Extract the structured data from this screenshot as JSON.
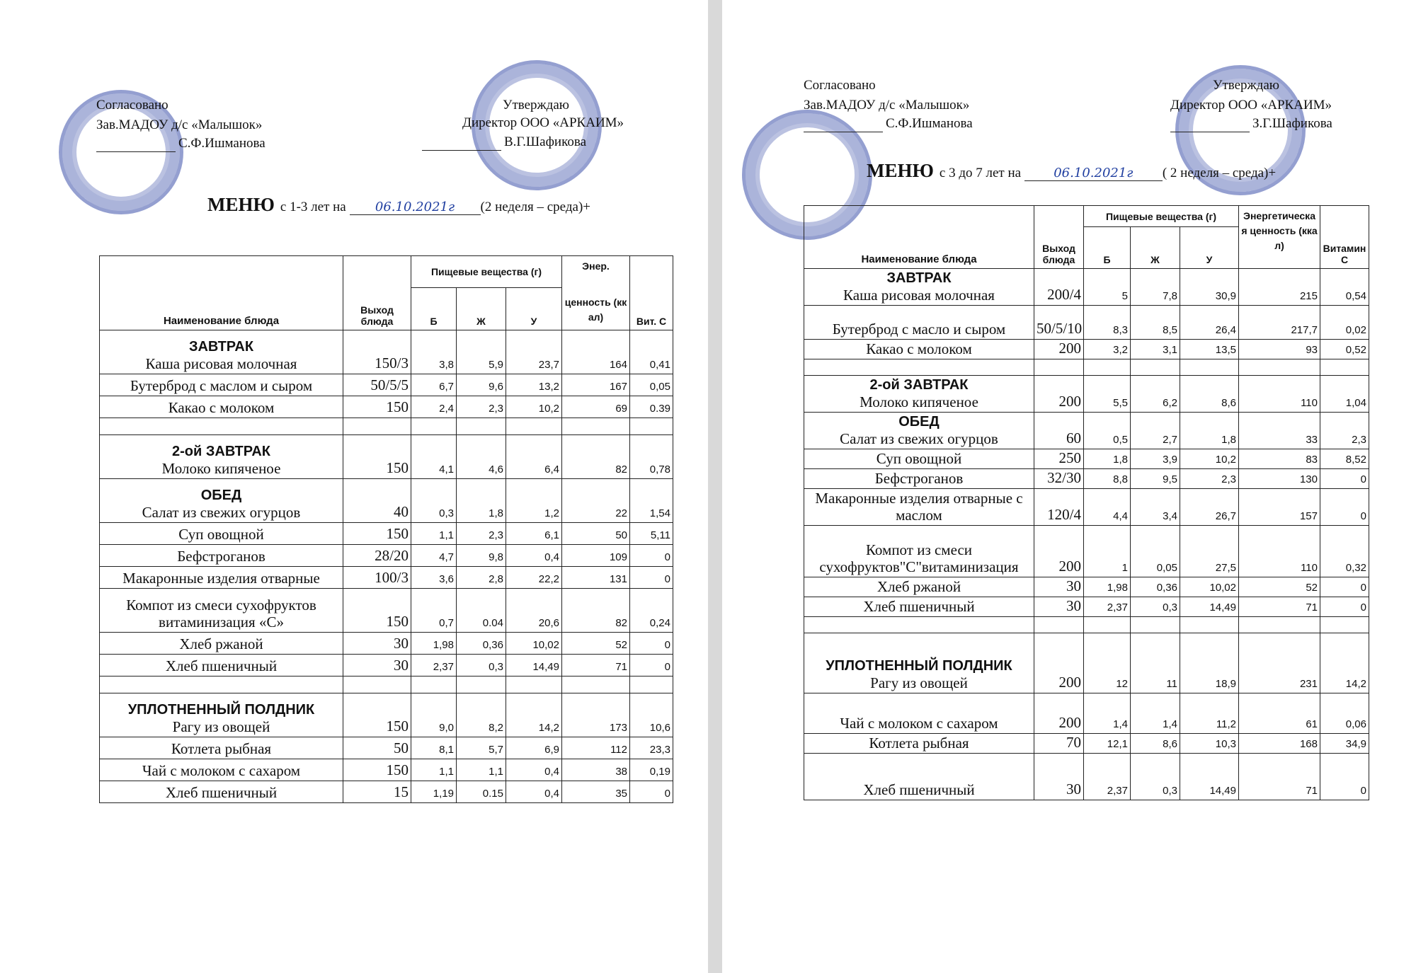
{
  "pages": [
    {
      "approval_left": {
        "label": "Согласовано",
        "position": "Зав.МАДОУ д/с «Малышок»",
        "name": "С.Ф.Ишманова"
      },
      "approval_right": {
        "label": "Утверждаю",
        "position": "Директор ООО «АРКАИМ»",
        "name": "В.Г.Шафикова"
      },
      "title": "МЕНЮ",
      "age": "с 1-3 лет на",
      "date": "06.10.2021г",
      "week": "(2 неделя – среда)+",
      "table": {
        "header": {
          "name": "Наименование блюда",
          "output": "Выход блюда",
          "nutrients": "Пищевые вещества (г)",
          "protein": "Б",
          "fat": "Ж",
          "carbs": "У",
          "energy": [
            "Энер.",
            "ценность (ккал)"
          ],
          "vitamin": "Вит. С"
        },
        "rows": [
          {
            "heading": "ЗАВТРАК",
            "cells": [
              "Каша  рисовая молочная",
              "150/3",
              "3,8",
              "5,9",
              "23,7",
              "164",
              "0,41"
            ]
          },
          {
            "cells": [
              "Бутерброд с маслом и сыром",
              "50/5/5",
              "6,7",
              "9,6",
              "13,2",
              "167",
              "0,05"
            ]
          },
          {
            "cells": [
              "Какао с молоком",
              "150",
              "2,4",
              "2,3",
              "10,2",
              "69",
              "0.39"
            ]
          },
          null,
          {
            "heading": "2-ой ЗАВТРАК",
            "cells": [
              "Молоко кипяченое",
              "150",
              "4,1",
              "4,6",
              "6,4",
              "82",
              "0,78"
            ]
          },
          {
            "heading": "ОБЕД",
            "cells": [
              "Салат из свежих огурцов",
              "40",
              "0,3",
              "1,8",
              "1,2",
              "22",
              "1,54"
            ]
          },
          {
            "cells": [
              "Суп овощной",
              "150",
              "1,1",
              "2,3",
              "6,1",
              "50",
              "5,11"
            ]
          },
          {
            "cells": [
              "Бефстроганов",
              "28/20",
              "4,7",
              "9,8",
              "0,4",
              "109",
              "0"
            ]
          },
          {
            "cells": [
              "Макаронные изделия отварные",
              "100/3",
              "3,6",
              "2,8",
              "22,2",
              "131",
              "0"
            ]
          },
          {
            "cells": [
              "Компот из смеси сухофруктов витаминизация «С»",
              "150",
              "0,7",
              "0.04",
              "20,6",
              "82",
              "0,24"
            ]
          },
          {
            "cells": [
              "Хлеб ржаной",
              "30",
              "1,98",
              "0,36",
              "10,02",
              "52",
              "0"
            ]
          },
          {
            "cells": [
              "Хлеб пшеничный",
              "30",
              "2,37",
              "0,3",
              "14,49",
              "71",
              "0"
            ]
          },
          null,
          {
            "heading": "УПЛОТНЕННЫЙ ПОЛДНИК",
            "cells": [
              "Рагу из овощей",
              "150",
              "9,0",
              "8,2",
              "14,2",
              "173",
              "10,6"
            ]
          },
          {
            "cells": [
              "Котлета рыбная",
              "50",
              "8,1",
              "5,7",
              "6,9",
              "112",
              "23,3"
            ]
          },
          {
            "cells": [
              "Чай с молоком с сахаром",
              "150",
              "1,1",
              "1,1",
              "0,4",
              "38",
              "0,19"
            ]
          },
          {
            "cells": [
              "Хлеб пшеничный",
              "15",
              "1,19",
              "0.15",
              "0,4",
              "35",
              "0"
            ]
          }
        ]
      }
    },
    {
      "approval_left": {
        "label": "Согласовано",
        "position": "Зав.МАДОУ д/с «Малышок»",
        "name": "С.Ф.Ишманова"
      },
      "approval_right": {
        "label": "Утверждаю",
        "position": "Директор ООО «АРКАИМ»",
        "name": "З.Г.Шафикова"
      },
      "title": "МЕНЮ",
      "age": "с 3 до 7 лет на",
      "date": "06.10.2021г",
      "week": "( 2 неделя – среда)+",
      "table": {
        "header": {
          "name": "Наименование блюда",
          "output": "Выход блюда",
          "nutrients": "Пищевые вещества (г)",
          "protein": "Б",
          "fat": "Ж",
          "carbs": "У",
          "energy": [
            "Энергетическая ценность (ккал)"
          ],
          "vitamin": "Витамин С"
        },
        "rows": [
          {
            "heading": "ЗАВТРАК",
            "cells": [
              "Каша  рисовая молочная",
              "200/4",
              "5",
              "7,8",
              "30,9",
              "215",
              "0,54"
            ]
          },
          {
            "cells": [
              "Бутерброд с масло и сыром",
              "50/5/10",
              "8,3",
              "8,5",
              "26,4",
              "217,7",
              "0,02"
            ]
          },
          {
            "cells": [
              "Какао с молоком",
              "200",
              "3,2",
              "3,1",
              "13,5",
              "93",
              "0,52"
            ]
          },
          null,
          {
            "heading": "2-ой ЗАВТРАК",
            "cells": [
              "Молоко кипяченое",
              "200",
              "5,5",
              "6,2",
              "8,6",
              "110",
              "1,04"
            ]
          },
          {
            "heading": "ОБЕД",
            "cells": [
              "Салат из свежих огурцов",
              "60",
              "0,5",
              "2,7",
              "1,8",
              "33",
              "2,3"
            ]
          },
          {
            "cells": [
              "Суп овощной",
              "250",
              "1,8",
              "3,9",
              "10,2",
              "83",
              "8,52"
            ]
          },
          {
            "cells": [
              "Бефстроганов",
              "32/30",
              "8,8",
              "9,5",
              "2,3",
              "130",
              "0"
            ]
          },
          {
            "cells": [
              "Макаронные изделия отварные с маслом",
              "120/4",
              "4,4",
              "3,4",
              "26,7",
              "157",
              "0"
            ]
          },
          {
            "cells": [
              "Компот из смеси сухофруктов\"С\"витаминизация",
              "200",
              "1",
              "0,05",
              "27,5",
              "110",
              "0,32"
            ]
          },
          {
            "cells": [
              "Хлеб ржаной",
              "30",
              "1,98",
              "0,36",
              "10,02",
              "52",
              "0"
            ]
          },
          {
            "cells": [
              "Хлеб пшеничный",
              "30",
              "2,37",
              "0,3",
              "14,49",
              "71",
              "0"
            ]
          },
          null,
          {
            "heading": "УПЛОТНЕННЫЙ ПОЛДНИК",
            "cells": [
              "Рагу из овощей",
              "200",
              "12",
              "11",
              "18,9",
              "231",
              "14,2"
            ]
          },
          {
            "cells": [
              "Чай с молоком с сахаром",
              "200",
              "1,4",
              "1,4",
              "11,2",
              "61",
              "0,06"
            ]
          },
          {
            "cells": [
              "Котлета рыбная",
              "70",
              "12,1",
              "8,6",
              "10,3",
              "168",
              "34,9"
            ]
          },
          {
            "cells": [
              "Хлеб пшеничный",
              "30",
              "2,37",
              "0,3",
              "14,49",
              "71",
              "0"
            ]
          }
        ]
      }
    }
  ]
}
